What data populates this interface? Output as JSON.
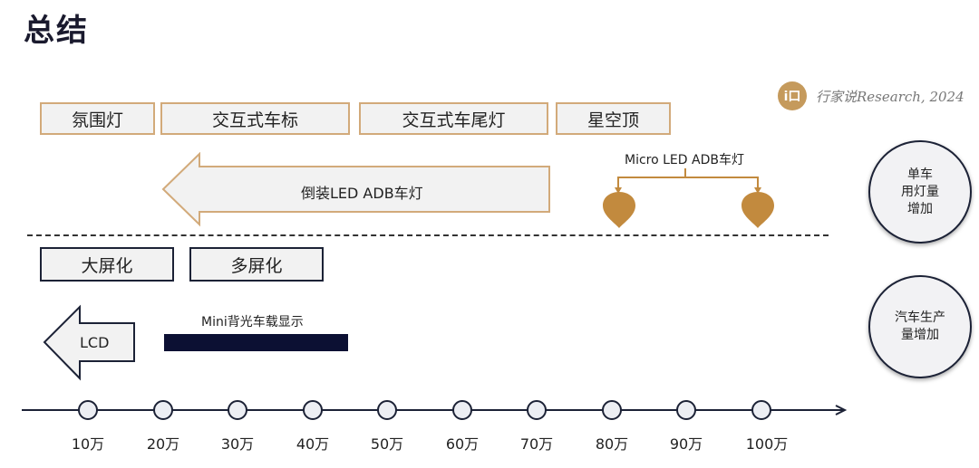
{
  "title": "总结",
  "logo": {
    "badge": "i口",
    "text": "行家说Research, 2024"
  },
  "top_boxes": [
    "氛围灯",
    "交互式车标",
    "交互式车尾灯",
    "星空顶"
  ],
  "adb_arrow": {
    "label": "倒装LED ADB车灯"
  },
  "micro_led": {
    "label": "Micro LED ADB车灯"
  },
  "bottom_boxes": [
    "大屏化",
    "多屏化"
  ],
  "lcd_arrow": {
    "label": "LCD"
  },
  "mini_backlight": {
    "label": "Mini背光车载显示"
  },
  "circles": [
    {
      "lines": [
        "单车",
        "用灯量",
        "增加"
      ]
    },
    {
      "lines": [
        "汽车生产",
        "量增加"
      ]
    }
  ],
  "timeline": {
    "ticks": [
      "10万",
      "20万",
      "30万",
      "40万",
      "50万",
      "60万",
      "70万",
      "80万",
      "90万",
      "100万"
    ]
  },
  "colors": {
    "gold": "#d2aa7a",
    "navy": "#1c2236",
    "bar": "#0c1033",
    "pin": "#c28a3e"
  }
}
